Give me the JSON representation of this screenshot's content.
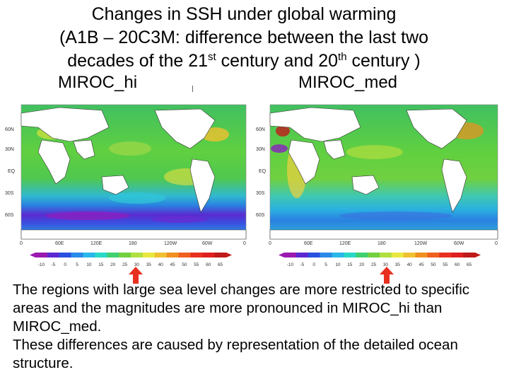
{
  "title": {
    "line1": "Changes in SSH under global warming",
    "line2": "(A1B – 20C3M: difference between the last two",
    "line3_a": "decades of the 21",
    "line3_sup1": "st",
    "line3_b": " century and 20",
    "line3_sup2": "th",
    "line3_c": " century )"
  },
  "maps": [
    {
      "label": "MIROC_hi",
      "lat_labels": [
        "60N",
        "30N",
        "EQ",
        "30S",
        "60S"
      ],
      "lon_labels": [
        "0",
        "60E",
        "120E",
        "180",
        "120W",
        "60W",
        "0"
      ]
    },
    {
      "label": "MIROC_med",
      "lat_labels": [
        "60N",
        "30N",
        "EQ",
        "30S",
        "60S"
      ],
      "lon_labels": [
        "0",
        "60E",
        "120E",
        "180",
        "120W",
        "60W",
        "0"
      ]
    }
  ],
  "colorbar": {
    "ticks": [
      "-10",
      "-5",
      "0",
      "5",
      "10",
      "15",
      "20",
      "25",
      "30",
      "35",
      "40",
      "45",
      "50",
      "55",
      "60",
      "65"
    ],
    "colors": [
      "#9a1ab0",
      "#5a2ad0",
      "#2a50e0",
      "#2a8ae8",
      "#2ab8e8",
      "#2ad8c8",
      "#40d070",
      "#70d040",
      "#b0e040",
      "#e8e840",
      "#f0c030",
      "#f09020",
      "#f06020",
      "#e83020",
      "#e02020",
      "#c01a1a"
    ],
    "highlighted_tick": "30"
  },
  "arrow_color": "#e83020",
  "footer": {
    "para1": "The regions with large sea level changes are more restricted to specific areas and the magnitudes are more pronounced in MIROC_hi than MIROC_med.",
    "para2": "These differences are caused by representation of the detailed ocean structure."
  }
}
